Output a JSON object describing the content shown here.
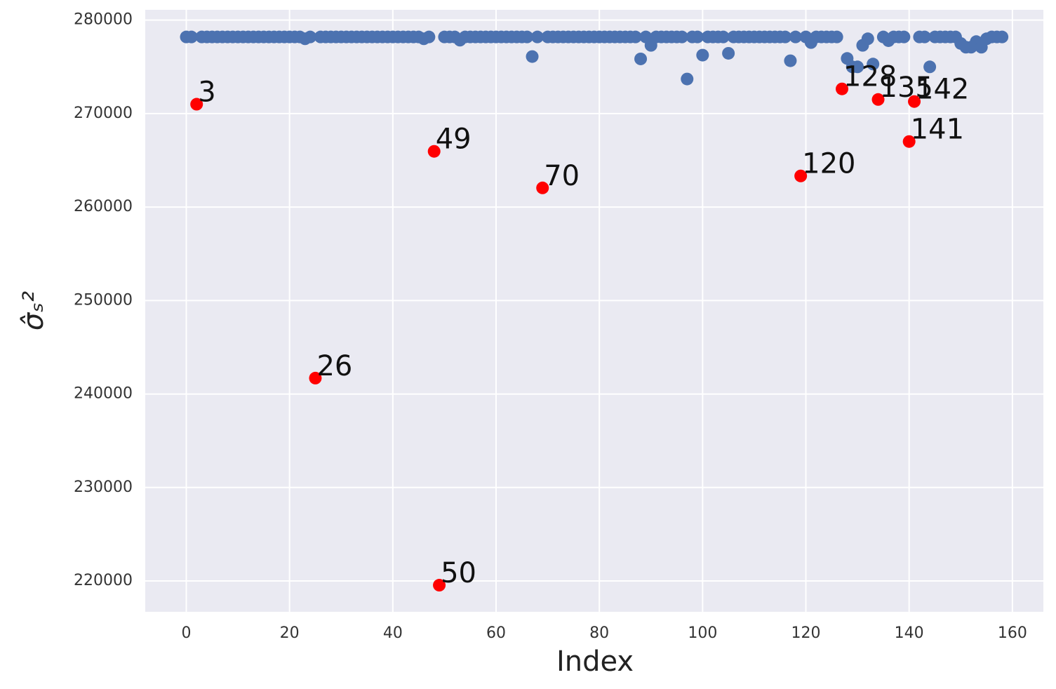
{
  "chart_data": {
    "type": "scatter",
    "xlabel": "Index",
    "ylabel": "σ̂ₛ²",
    "xlim": [
      -7.95,
      166
    ],
    "ylim": [
      216700,
      281100
    ],
    "xticks": [
      0,
      20,
      40,
      60,
      80,
      100,
      120,
      140,
      160
    ],
    "yticks": [
      220000,
      230000,
      240000,
      250000,
      260000,
      270000,
      280000
    ],
    "grid": true,
    "series": [
      {
        "color": "#4c72b0",
        "x": [
          0,
          1,
          3,
          4,
          5,
          6,
          7,
          8,
          9,
          10,
          11,
          12,
          13,
          14,
          15,
          16,
          17,
          18,
          19,
          20,
          21,
          22,
          23,
          24,
          26,
          27,
          28,
          29,
          30,
          31,
          32,
          33,
          34,
          35,
          36,
          37,
          38,
          39,
          40,
          41,
          42,
          43,
          44,
          45,
          46,
          47,
          50,
          51,
          52,
          53,
          54,
          55,
          56,
          57,
          58,
          59,
          60,
          61,
          62,
          63,
          64,
          65,
          66,
          67,
          68,
          70,
          71,
          72,
          73,
          74,
          75,
          76,
          77,
          78,
          79,
          80,
          81,
          82,
          83,
          84,
          85,
          86,
          87,
          88,
          89,
          90,
          91,
          92,
          93,
          94,
          95,
          96,
          97,
          98,
          99,
          100,
          101,
          102,
          103,
          104,
          105,
          106,
          107,
          108,
          109,
          110,
          111,
          112,
          113,
          114,
          115,
          116,
          117,
          118,
          120,
          121,
          122,
          123,
          124,
          125,
          126,
          128,
          129,
          130,
          131,
          132,
          133,
          135,
          136,
          137,
          138,
          139,
          142,
          143,
          144,
          145,
          146,
          147,
          148,
          149,
          150,
          151,
          152,
          153,
          154,
          155,
          156,
          157,
          158
        ],
        "values": [
          278200,
          278200,
          278200,
          278200,
          278200,
          278200,
          278200,
          278200,
          278200,
          278200,
          278200,
          278200,
          278200,
          278200,
          278200,
          278200,
          278200,
          278200,
          278200,
          278200,
          278200,
          278200,
          278000,
          278200,
          278200,
          278200,
          278200,
          278200,
          278200,
          278200,
          278200,
          278200,
          278200,
          278200,
          278200,
          278200,
          278200,
          278200,
          278200,
          278200,
          278200,
          278200,
          278200,
          278200,
          278000,
          278200,
          278200,
          278200,
          278200,
          277850,
          278200,
          278200,
          278200,
          278200,
          278200,
          278200,
          278200,
          278200,
          278200,
          278200,
          278200,
          278200,
          278200,
          276100,
          278200,
          278200,
          278200,
          278200,
          278200,
          278200,
          278200,
          278200,
          278200,
          278200,
          278200,
          278200,
          278200,
          278200,
          278200,
          278200,
          278200,
          278200,
          278200,
          275850,
          278200,
          277300,
          278200,
          278200,
          278200,
          278200,
          278200,
          278200,
          273700,
          278200,
          278200,
          276250,
          278200,
          278200,
          278200,
          278200,
          276450,
          278200,
          278200,
          278200,
          278200,
          278200,
          278200,
          278200,
          278200,
          278200,
          278200,
          278200,
          275650,
          278200,
          278200,
          277600,
          278200,
          278200,
          278200,
          278200,
          278200,
          275900,
          275000,
          275000,
          277300,
          278000,
          275300,
          278200,
          277800,
          278200,
          278200,
          278200,
          278200,
          278200,
          275000,
          278200,
          278200,
          278200,
          278200,
          278200,
          277500,
          277100,
          277100,
          277700,
          277100,
          278000,
          278200,
          278200,
          278200
        ]
      },
      {
        "color": "#ff0000",
        "x": [
          2,
          25,
          48,
          49,
          69,
          119,
          127,
          134,
          140,
          141
        ],
        "values": [
          271000,
          241700,
          265960,
          219550,
          262050,
          263330,
          272640,
          271510,
          267010,
          271290
        ]
      }
    ],
    "annotations": [
      "3",
      "26",
      "49",
      "50",
      "70",
      "120",
      "128",
      "135",
      "141",
      "142"
    ]
  }
}
